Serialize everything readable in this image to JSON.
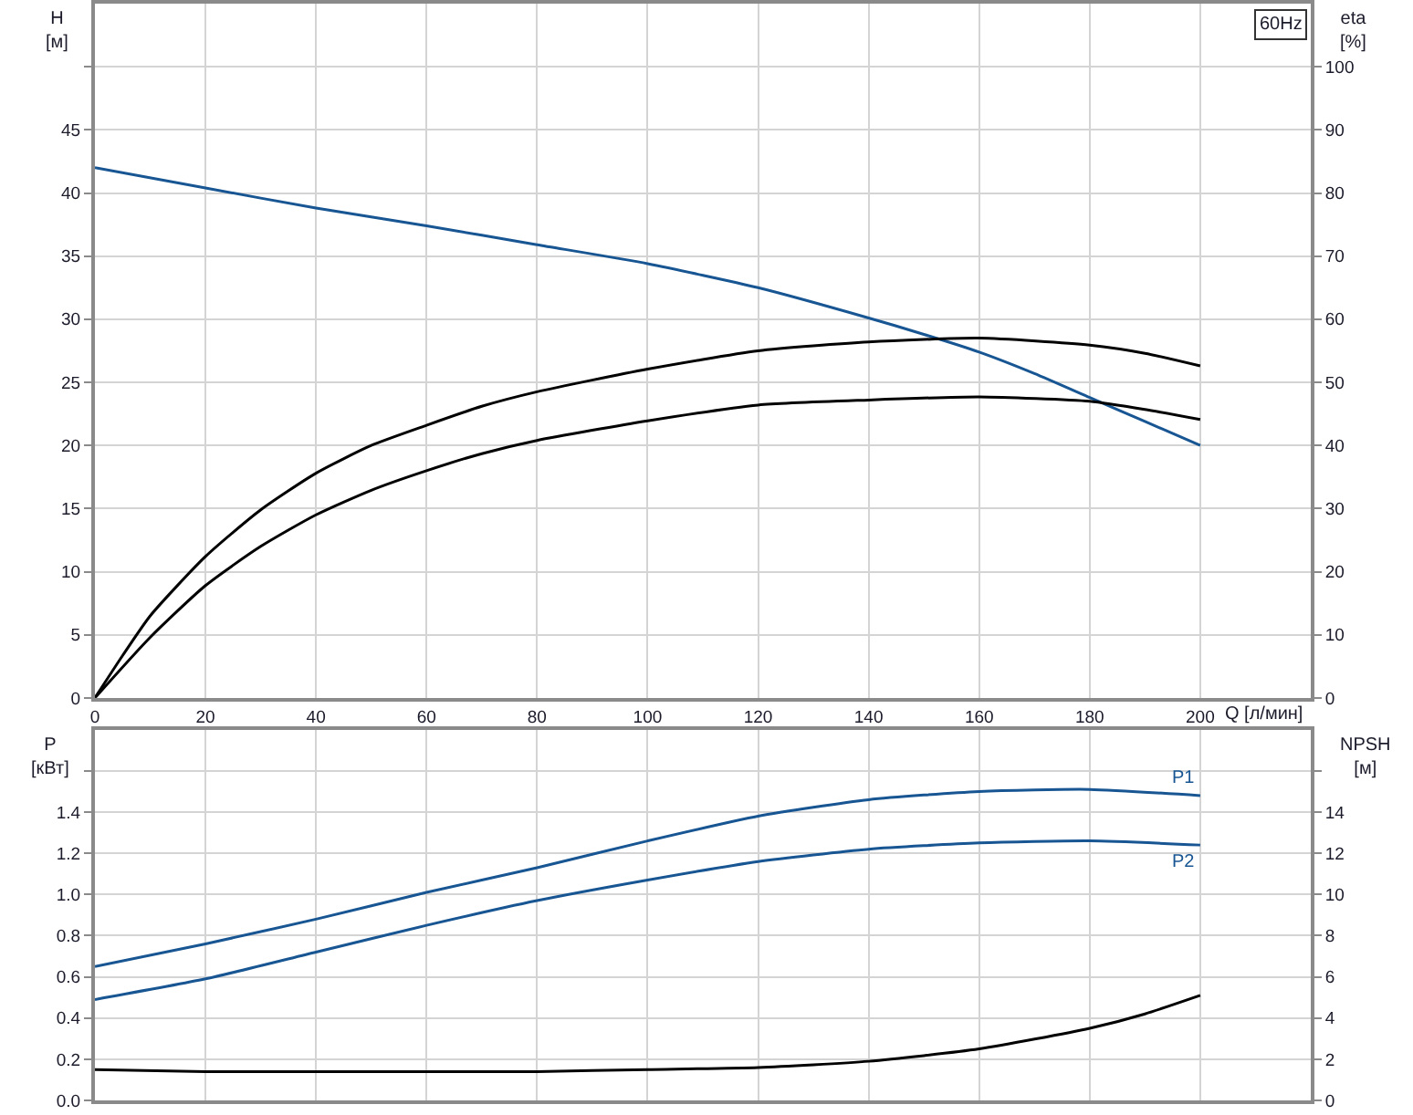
{
  "chart_data": [
    {
      "type": "line",
      "xlabel": "Q [л/мин]",
      "ylabel": "H\n[м]",
      "y2label": "eta\n[%]",
      "annotations": [
        "60Hz"
      ],
      "xlim": [
        0,
        220
      ],
      "xticks": [
        0,
        20,
        40,
        60,
        80,
        100,
        120,
        140,
        160,
        180,
        200
      ],
      "ylim": [
        0,
        55
      ],
      "yticks": [
        0,
        5,
        10,
        15,
        20,
        25,
        30,
        35,
        40,
        45,
        {
          "value": 50,
          "label": null
        }
      ],
      "y2lim": [
        0,
        110
      ],
      "y2ticks": [
        0,
        10,
        20,
        30,
        40,
        50,
        60,
        70,
        80,
        90,
        100
      ],
      "grid": true,
      "series": [
        {
          "color": "#175593",
          "x": [
            0,
            20,
            40,
            60,
            80,
            100,
            120,
            140,
            150,
            160,
            170,
            180,
            190,
            200
          ],
          "values": [
            42.0,
            40.4,
            38.8,
            37.4,
            35.9,
            34.4,
            32.5,
            30.1,
            28.8,
            27.4,
            25.7,
            23.8,
            21.9,
            20.0
          ]
        },
        {
          "color": "#000000",
          "axis": "y2",
          "x": [
            0,
            5,
            10,
            20,
            30,
            40,
            50,
            60,
            70,
            80,
            100,
            120,
            140,
            160,
            180,
            190,
            200
          ],
          "values": [
            0,
            6.7,
            13,
            22.4,
            29.8,
            35.6,
            40,
            43.2,
            46.2,
            48.5,
            52.1,
            55,
            56.4,
            57,
            55.9,
            54.6,
            52.6
          ]
        },
        {
          "color": "#000000",
          "axis": "y2",
          "x": [
            0,
            10,
            20,
            30,
            40,
            50,
            60,
            70,
            80,
            100,
            120,
            140,
            160,
            180,
            190,
            200
          ],
          "values": [
            0,
            9.6,
            17.8,
            24,
            29,
            32.9,
            36,
            38.7,
            40.8,
            43.9,
            46.4,
            47.2,
            47.7,
            47,
            45.7,
            44.1
          ]
        }
      ]
    },
    {
      "type": "line",
      "ylabel": "P\n[кВт]",
      "y2label": "NPSH\n[м]",
      "tick_labels": "y",
      "xlim": [
        0,
        220
      ],
      "xticks": [
        0,
        20,
        40,
        60,
        80,
        100,
        120,
        140,
        160,
        180,
        200
      ],
      "ylim": [
        0,
        1.8
      ],
      "yticks": [
        {
          "value": 0,
          "label": "0.0"
        },
        0.2,
        0.4,
        0.6,
        0.8,
        {
          "value": 1.0,
          "label": "1.0"
        },
        1.2,
        1.4,
        {
          "value": 1.6,
          "label": null
        }
      ],
      "y2lim": [
        0,
        18
      ],
      "y2ticks": [
        0,
        2,
        4,
        6,
        8,
        10,
        12,
        14,
        {
          "value": 16,
          "label": null
        }
      ],
      "grid": true,
      "series": [
        {
          "name": "P1",
          "color": "#175593",
          "x": [
            0,
            20,
            40,
            60,
            80,
            100,
            120,
            140,
            160,
            180,
            200
          ],
          "values": [
            0.65,
            0.76,
            0.88,
            1.01,
            1.13,
            1.26,
            1.38,
            1.46,
            1.5,
            1.51,
            1.48
          ]
        },
        {
          "name": "P2",
          "color": "#175593",
          "x": [
            0,
            20,
            40,
            60,
            80,
            100,
            120,
            140,
            160,
            180,
            200
          ],
          "values": [
            0.49,
            0.59,
            0.72,
            0.85,
            0.97,
            1.07,
            1.16,
            1.22,
            1.25,
            1.26,
            1.24
          ]
        },
        {
          "color": "#000000",
          "axis": "y2",
          "x": [
            0,
            20,
            40,
            60,
            80,
            100,
            120,
            140,
            160,
            180,
            190,
            200
          ],
          "values": [
            1.5,
            1.4,
            1.4,
            1.4,
            1.4,
            1.5,
            1.6,
            1.9,
            2.5,
            3.5,
            4.2,
            5.1
          ]
        }
      ]
    }
  ]
}
